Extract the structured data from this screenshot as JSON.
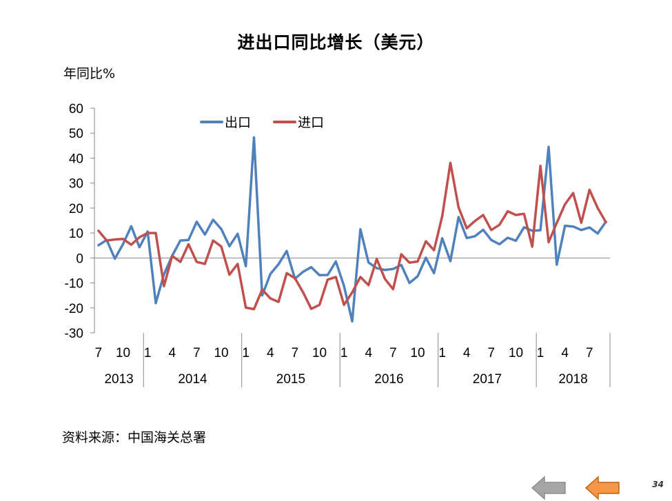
{
  "chart_data": {
    "type": "line",
    "title": "进出口同比增长（美元）",
    "ylabel": "年同比%",
    "ylim": [
      -30,
      60
    ],
    "yticks": [
      60,
      50,
      40,
      30,
      20,
      10,
      0,
      -10,
      -20,
      -30
    ],
    "legend_position": "top-center",
    "x_month_labels": [
      "7",
      "10",
      "1",
      "4",
      "7",
      "10",
      "1",
      "4",
      "7",
      "10",
      "1",
      "4",
      "7",
      "10",
      "1",
      "4",
      "7",
      "10",
      "1",
      "4",
      "7"
    ],
    "x_month_label_indices": [
      0,
      3,
      6,
      9,
      12,
      15,
      18,
      21,
      24,
      27,
      30,
      33,
      36,
      39,
      42,
      45,
      48,
      51,
      54,
      57,
      60
    ],
    "x_year_groups": [
      {
        "label": "2013",
        "start": 0,
        "end": 5
      },
      {
        "label": "2014",
        "start": 6,
        "end": 17
      },
      {
        "label": "2015",
        "start": 18,
        "end": 29
      },
      {
        "label": "2016",
        "start": 30,
        "end": 41
      },
      {
        "label": "2017",
        "start": 42,
        "end": 53
      },
      {
        "label": "2018",
        "start": 54,
        "end": 62
      }
    ],
    "series": [
      {
        "name": "出口",
        "color": "#4F81BD",
        "values": [
          5.1,
          7.2,
          -0.3,
          5.6,
          12.7,
          4.3,
          10.6,
          -18.1,
          -6.6,
          0.9,
          7.0,
          7.2,
          14.5,
          9.4,
          15.3,
          11.6,
          4.7,
          9.7,
          -3.3,
          48.3,
          -15.0,
          -6.4,
          -2.5,
          2.8,
          -8.3,
          -5.5,
          -3.7,
          -6.9,
          -6.8,
          -1.4,
          -11.2,
          -25.4,
          11.5,
          -1.8,
          -4.1,
          -4.8,
          -4.4,
          -2.8,
          -10.0,
          -7.3,
          0.1,
          -6.1,
          7.9,
          -1.3,
          16.4,
          8.0,
          8.7,
          11.3,
          7.2,
          5.5,
          8.1,
          6.9,
          12.3,
          10.9,
          11.1,
          44.5,
          -2.7,
          12.9,
          12.6,
          11.2,
          12.2,
          9.8,
          14.5
        ]
      },
      {
        "name": "进口",
        "color": "#C0504D",
        "values": [
          10.9,
          7.0,
          7.4,
          7.6,
          5.3,
          8.3,
          10.0,
          10.0,
          -11.3,
          0.8,
          -1.6,
          5.5,
          -1.6,
          -2.4,
          7.0,
          4.6,
          -6.7,
          -2.4,
          -19.9,
          -20.5,
          -12.7,
          -16.2,
          -17.6,
          -6.1,
          -8.1,
          -13.8,
          -20.4,
          -18.8,
          -8.7,
          -7.6,
          -18.8,
          -13.8,
          -7.6,
          -10.9,
          -0.4,
          -8.4,
          -12.5,
          1.5,
          -1.9,
          -1.4,
          6.7,
          3.1,
          16.7,
          38.1,
          20.3,
          11.9,
          14.8,
          17.2,
          11.2,
          13.3,
          18.7,
          17.2,
          17.7,
          4.5,
          36.9,
          6.3,
          14.0,
          21.5,
          26.0,
          14.1,
          27.3,
          20.0,
          14.3
        ]
      }
    ]
  },
  "source_note": "资料来源：中国海关总署",
  "page_number": "34",
  "colors": {
    "prev_button": "#A6A6A6",
    "next_button": "#F79646"
  }
}
